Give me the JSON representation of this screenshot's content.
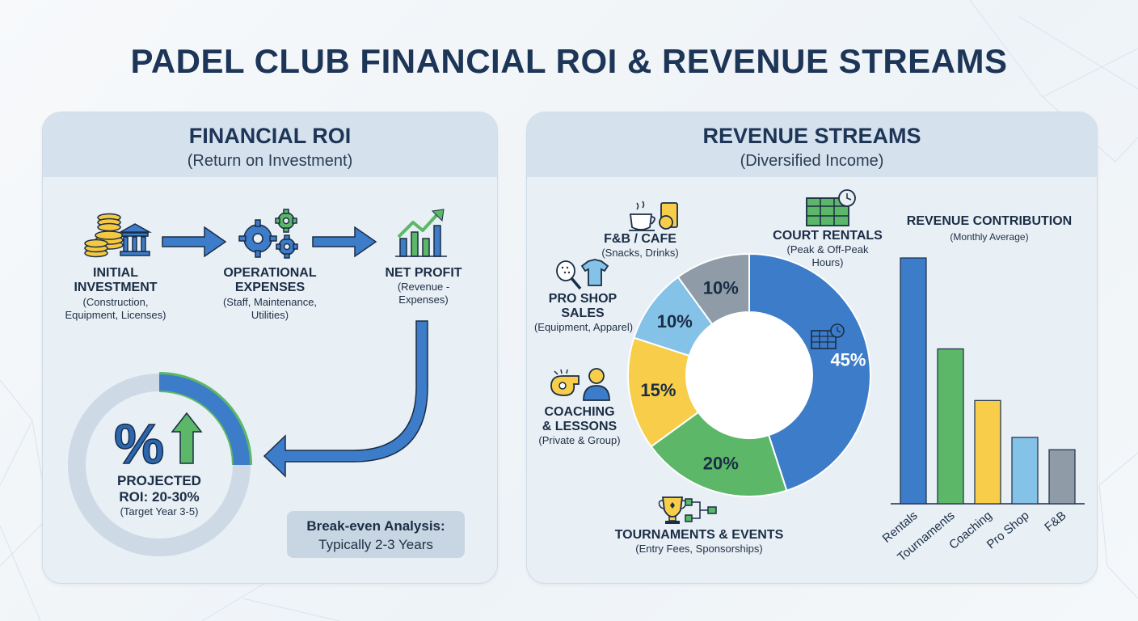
{
  "title": "PADEL CLUB FINANCIAL ROI & REVENUE STREAMS",
  "roi_panel": {
    "title": "FINANCIAL ROI",
    "subtitle": "(Return on Investment)",
    "stages": [
      {
        "label_1": "INITIAL",
        "label_2": "INVESTMENT",
        "sub_1": "(Construction,",
        "sub_2": "Equipment, Licenses)",
        "icon": "coins-bank-icon"
      },
      {
        "label_1": "OPERATIONAL",
        "label_2": "EXPENSES",
        "sub_1": "(Staff, Maintenance,",
        "sub_2": "Utilities)",
        "icon": "gears-icon"
      },
      {
        "label_1": "NET PROFIT",
        "label_2": "",
        "sub_1": "(Revenue -",
        "sub_2": "Expenses)",
        "icon": "growth-chart-icon"
      }
    ],
    "projected_roi": {
      "line_1": "PROJECTED",
      "line_2": "ROI: 20-30%",
      "sub": "(Target Year 3-5)",
      "roi_range_pct": [
        20,
        30
      ]
    },
    "break_even": {
      "title": "Break-even Analysis:",
      "value": "Typically 2-3 Years"
    }
  },
  "revenue_panel": {
    "title": "REVENUE STREAMS",
    "subtitle": "(Diversified Income)"
  },
  "chart_data": [
    {
      "type": "pie",
      "variant": "donut",
      "slices": [
        {
          "label_1": "COURT RENTALS",
          "label_2": "",
          "sub_1": "(Peak & Off-Peak",
          "sub_2": "Hours)",
          "value": 45,
          "value_label": "45%",
          "color": "#3d7cc9",
          "icon": "calendar-clock-icon"
        },
        {
          "label_1": "TOURNAMENTS & EVENTS",
          "label_2": "",
          "sub_1": "(Entry Fees, Sponsorships)",
          "sub_2": "",
          "value": 20,
          "value_label": "20%",
          "color": "#5cb868",
          "icon": "trophy-bracket-icon"
        },
        {
          "label_1": "COACHING",
          "label_2": "& LESSONS",
          "sub_1": "(Private & Group)",
          "sub_2": "",
          "value": 15,
          "value_label": "15%",
          "color": "#f7cd4a",
          "icon": "whistle-coach-icon"
        },
        {
          "label_1": "PRO SHOP",
          "label_2": "SALES",
          "sub_1": "(Equipment, Apparel)",
          "sub_2": "",
          "value": 10,
          "value_label": "10%",
          "color": "#85c2e8",
          "icon": "racket-shirt-icon"
        },
        {
          "label_1": "F&B / CAFE",
          "label_2": "",
          "sub_1": "(Snacks, Drinks)",
          "sub_2": "",
          "value": 10,
          "value_label": "10%",
          "color": "#8f9ba6",
          "icon": "coffee-snack-icon"
        }
      ]
    },
    {
      "type": "bar",
      "title": "REVENUE CONTRIBUTION",
      "subtitle": "(Monthly Average)",
      "categories": [
        "Rentals",
        "Tournaments",
        "Coaching",
        "Pro Shop",
        "F&B"
      ],
      "values": [
        100,
        63,
        42,
        27,
        22
      ],
      "colors": [
        "#3d7cc9",
        "#5cb868",
        "#f7cd4a",
        "#85c2e8",
        "#8f9ba6"
      ],
      "ylim": [
        0,
        100
      ],
      "grid": false
    }
  ]
}
